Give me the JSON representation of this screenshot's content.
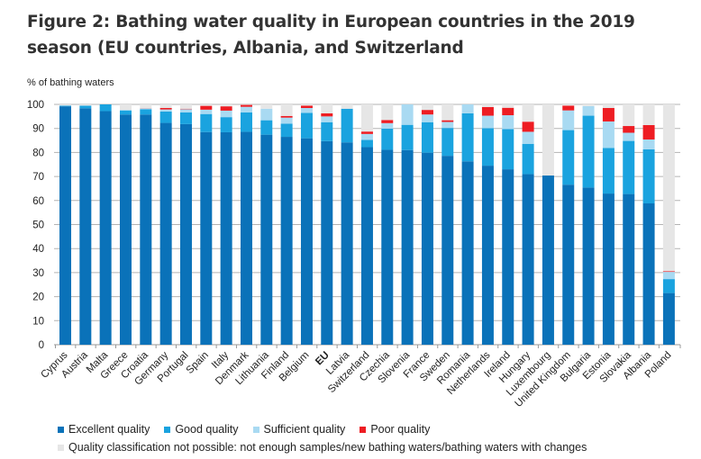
{
  "chart_data": {
    "type": "bar",
    "stacked": true,
    "title": "Figure 2: Bathing water quality in European countries in the 2019 season (EU countries, Albania, and Switzerland",
    "xlabel": "",
    "ylabel": "% of bathing waters",
    "ylim": [
      0,
      100
    ],
    "yticks": [
      0,
      10,
      20,
      30,
      40,
      50,
      60,
      70,
      80,
      90,
      100
    ],
    "grid": true,
    "legend_position": "bottom",
    "categories": [
      "Cyprus",
      "Austria",
      "Malta",
      "Greece",
      "Croatia",
      "Germany",
      "Portugal",
      "Spain",
      "Italy",
      "Denmark",
      "Lithuania",
      "Finland",
      "Belgium",
      "EU",
      "Latvia",
      "Switzerland",
      "Czechia",
      "Slovenia",
      "France",
      "Sweden",
      "Romania",
      "Netherlands",
      "Ireland",
      "Hungary",
      "Luxembourg",
      "United Kingdom",
      "Bulgaria",
      "Estonia",
      "Slovakia",
      "Albania",
      "Poland"
    ],
    "highlight_category": "EU",
    "series": [
      {
        "name": "Excellent quality",
        "color": "#0a72b9",
        "values": [
          99.2,
          98.4,
          97.2,
          95.8,
          95.8,
          92.3,
          91.8,
          88.5,
          88.4,
          88.6,
          87.4,
          86.5,
          85.9,
          84.7,
          84.2,
          82.2,
          81.1,
          81.0,
          79.9,
          78.6,
          76.3,
          74.5,
          73.0,
          71.0,
          70.4,
          66.6,
          65.4,
          62.9,
          62.7,
          58.8,
          21.5
        ]
      },
      {
        "name": "Good quality",
        "color": "#1aa3df",
        "values": [
          0.3,
          1.1,
          2.8,
          1.7,
          2.2,
          4.7,
          4.9,
          7.5,
          6.3,
          8.1,
          6.0,
          5.5,
          10.6,
          7.9,
          14.0,
          3.0,
          8.8,
          10.5,
          12.7,
          11.6,
          20.0,
          15.6,
          16.7,
          12.6,
          0,
          22.7,
          29.9,
          19.0,
          22.1,
          22.5,
          5.8
        ]
      },
      {
        "name": "Sufficient quality",
        "color": "#a9daf2",
        "values": [
          0,
          0,
          0,
          0.2,
          0.3,
          0.9,
          1.3,
          1.8,
          2.7,
          2.3,
          4.8,
          2.5,
          2.0,
          2.4,
          0,
          2.5,
          2.3,
          8.5,
          3.2,
          2.5,
          3.7,
          5.2,
          5.8,
          5.0,
          0,
          8.2,
          4.0,
          11.0,
          3.4,
          4.1,
          3.0
        ]
      },
      {
        "name": "Poor quality",
        "color": "#ee1d23",
        "values": [
          0,
          0,
          0,
          0,
          0.1,
          0.6,
          0.2,
          1.6,
          1.8,
          0.8,
          0,
          0.7,
          1.0,
          1.3,
          0,
          1.0,
          1.3,
          0,
          1.9,
          0.7,
          0,
          3.6,
          3.1,
          4.2,
          0,
          2.0,
          0,
          5.6,
          2.8,
          6.0,
          0.3
        ]
      },
      {
        "name": "Quality classification not possible: not enough samples/new bathing waters/bathing waters with changes",
        "color": "#e6e6e6",
        "values": [
          0.5,
          0.5,
          0,
          2.3,
          1.6,
          1.5,
          1.8,
          0.6,
          0.8,
          0.2,
          1.8,
          4.8,
          0.5,
          3.7,
          1.8,
          11.3,
          6.5,
          0,
          2.3,
          6.6,
          0,
          1.1,
          1.4,
          7.2,
          29.6,
          0.5,
          0.7,
          1.5,
          9.0,
          8.6,
          69.4
        ]
      }
    ]
  }
}
